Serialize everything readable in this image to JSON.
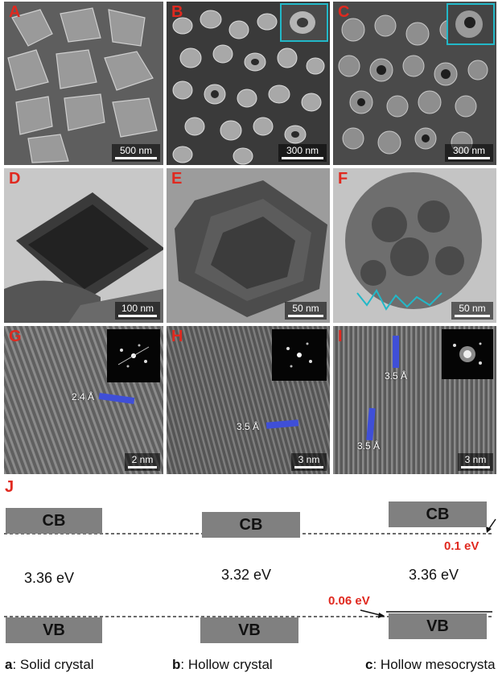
{
  "panels": [
    {
      "label": "A",
      "scale": "500 nm",
      "kind": "sem"
    },
    {
      "label": "B",
      "scale": "300 nm",
      "kind": "sem"
    },
    {
      "label": "C",
      "scale": "300 nm",
      "kind": "sem"
    },
    {
      "label": "D",
      "scale": "100 nm",
      "kind": "tem"
    },
    {
      "label": "E",
      "scale": "50 nm",
      "kind": "tem"
    },
    {
      "label": "F",
      "scale": "50 nm",
      "kind": "tem"
    },
    {
      "label": "G",
      "scale": "2 nm",
      "kind": "hr",
      "d": [
        "2.4 Å"
      ]
    },
    {
      "label": "H",
      "scale": "3 nm",
      "kind": "hr",
      "d": [
        "3.5 Å"
      ]
    },
    {
      "label": "I",
      "scale": "3 nm",
      "kind": "hr",
      "d": [
        "3.5 Å",
        "3.5 Å"
      ]
    }
  ],
  "diagram": {
    "label": "J",
    "cb": "CB",
    "vb": "VB",
    "gaps": [
      "3.36 eV",
      "3.32 eV",
      "3.36 eV"
    ],
    "offsets": {
      "cb": "0.1 eV",
      "vb": "0.06 eV"
    },
    "captions": [
      {
        "key": "a",
        "text": ": Solid crystal"
      },
      {
        "key": "b",
        "text": ": Hollow crystal"
      },
      {
        "key": "c",
        "text": ": Hollow mesocrysta"
      }
    ]
  },
  "colors": {
    "label_red": "#e0291f",
    "inset_cyan": "#22b8c8",
    "lattice_blue": "#3f4fd8",
    "band_gray": "#808080"
  }
}
